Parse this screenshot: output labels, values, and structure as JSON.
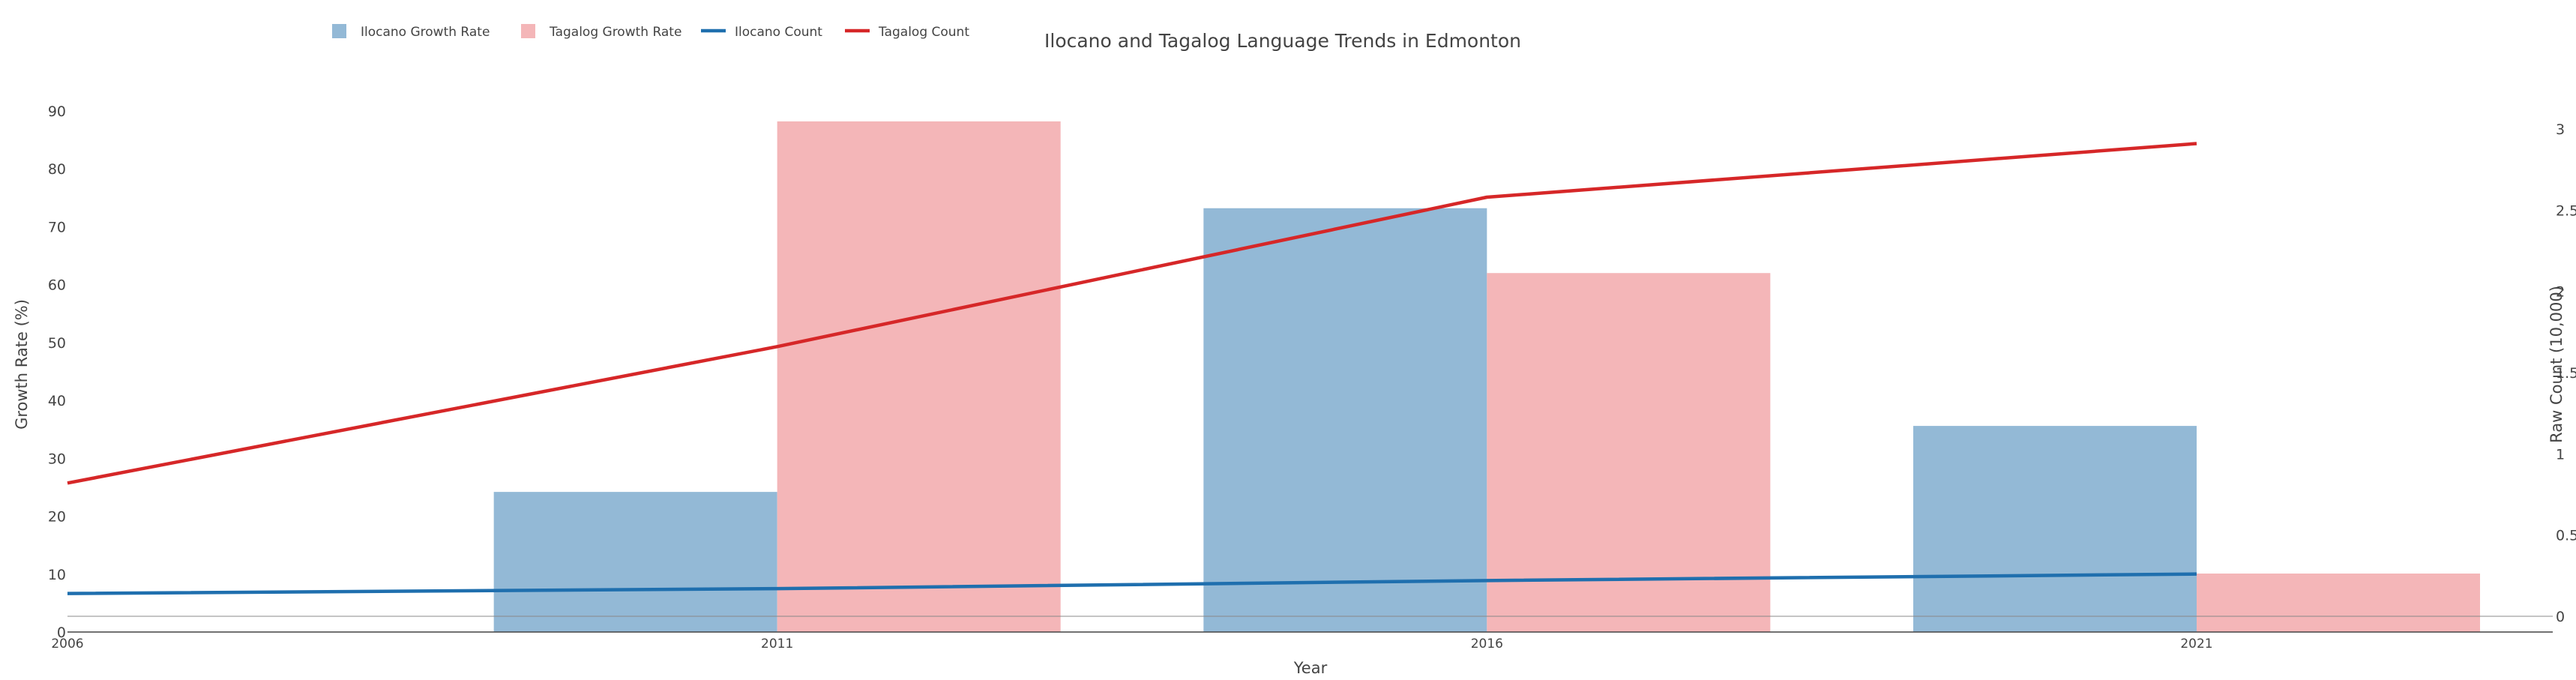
{
  "chart_data": {
    "type": "bar",
    "title": "Ilocano and Tagalog Language Trends in Edmonton",
    "xlabel": "Year",
    "ylabel_left": "Growth Rate (%)",
    "ylabel_right": "Raw Count (10,000)",
    "x": [
      2006,
      2011,
      2016,
      2021
    ],
    "x_ticks": [
      "2006",
      "2011",
      "2016",
      "2021"
    ],
    "y_left_range": [
      0,
      90
    ],
    "y_left_ticks": [
      "0",
      "10",
      "20",
      "30",
      "40",
      "50",
      "60",
      "70",
      "80",
      "90"
    ],
    "y_right_range": [
      0,
      3.1
    ],
    "y_right_ticks": [
      "0",
      "0.5",
      "1",
      "1.5",
      "2",
      "2.5",
      "3"
    ],
    "right_tick_labels_clipped": true,
    "legend_placement": "top-left",
    "legend": [
      {
        "label": "Ilocano Growth Rate",
        "kind": "bar",
        "color": "#93b9d6"
      },
      {
        "label": "Tagalog Growth Rate",
        "kind": "bar",
        "color": "#f4b6b8"
      },
      {
        "label": "Ilocano Count",
        "kind": "line",
        "color": "#1f6fae"
      },
      {
        "label": "Tagalog Count",
        "kind": "line",
        "color": "#d62728"
      }
    ],
    "series": [
      {
        "name": "Ilocano Growth Rate",
        "type": "bar",
        "axis": "left",
        "color": "#93b9d6",
        "x": [
          2011,
          2016,
          2021
        ],
        "values": [
          24.2,
          73.2,
          35.6
        ]
      },
      {
        "name": "Tagalog Growth Rate",
        "type": "bar",
        "axis": "left",
        "color": "#f4b6b8",
        "x": [
          2011,
          2016,
          2021
        ],
        "values": [
          88.2,
          62.0,
          10.1
        ]
      },
      {
        "name": "Ilocano Count",
        "type": "line",
        "axis": "right",
        "color": "#1f6fae",
        "x": [
          2006,
          2011,
          2016,
          2021
        ],
        "values": [
          0.14,
          0.17,
          0.22,
          0.26
        ]
      },
      {
        "name": "Tagalog Count",
        "type": "line",
        "axis": "right",
        "color": "#d62728",
        "x": [
          2006,
          2011,
          2016,
          2021
        ],
        "values": [
          0.82,
          1.66,
          2.58,
          2.91
        ]
      }
    ],
    "grid": false,
    "zero_line_right": true
  }
}
